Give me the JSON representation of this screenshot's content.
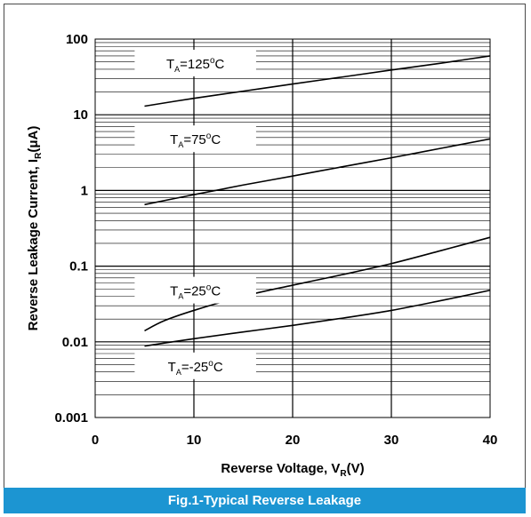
{
  "chart_data": {
    "type": "line",
    "title": "Fig.1-Typical Reverse Leakage",
    "xlabel_main": "Reverse Voltage, V",
    "xlabel_sub": "R",
    "xlabel_tail": "(V)",
    "ylabel_main": "Reverse Leakage Current, I",
    "ylabel_sub": "R",
    "ylabel_tail": "(μA)",
    "xlim": [
      0,
      40
    ],
    "ylim": [
      0.001,
      100
    ],
    "yscale": "log",
    "xticks": [
      "0",
      "10",
      "20",
      "30",
      "40"
    ],
    "yticks": [
      "0.001",
      "0.01",
      "0.1",
      "1",
      "10",
      "100"
    ],
    "grid": true,
    "series": [
      {
        "name": "TA=125°C",
        "label_prefix": "T",
        "label_sub": "A",
        "label_value": "=125",
        "label_unit": "C",
        "x": [
          5,
          10,
          15,
          20,
          25,
          30,
          35,
          40
        ],
        "y": [
          13,
          16.5,
          20.5,
          25.5,
          31.5,
          39,
          48,
          60
        ]
      },
      {
        "name": "TA=75°C",
        "label_prefix": "T",
        "label_sub": "A",
        "label_value": "=75",
        "label_unit": "C",
        "x": [
          5,
          10,
          15,
          20,
          25,
          30,
          35,
          40
        ],
        "y": [
          0.65,
          0.88,
          1.18,
          1.55,
          2.05,
          2.7,
          3.6,
          4.8
        ]
      },
      {
        "name": "TA=25°C",
        "label_prefix": "T",
        "label_sub": "A",
        "label_value": "=25",
        "label_unit": "C",
        "x": [
          5,
          7,
          10,
          15,
          20,
          25,
          30,
          35,
          40
        ],
        "y": [
          0.014,
          0.019,
          0.026,
          0.04,
          0.056,
          0.077,
          0.108,
          0.16,
          0.24
        ]
      },
      {
        "name": "TA=-25°C",
        "label_prefix": "T",
        "label_sub": "A",
        "label_value": "=-25",
        "label_unit": "C",
        "x": [
          5,
          10,
          15,
          20,
          25,
          30,
          35,
          40
        ],
        "y": [
          0.0088,
          0.011,
          0.0135,
          0.0165,
          0.0205,
          0.026,
          0.035,
          0.048
        ]
      }
    ]
  }
}
